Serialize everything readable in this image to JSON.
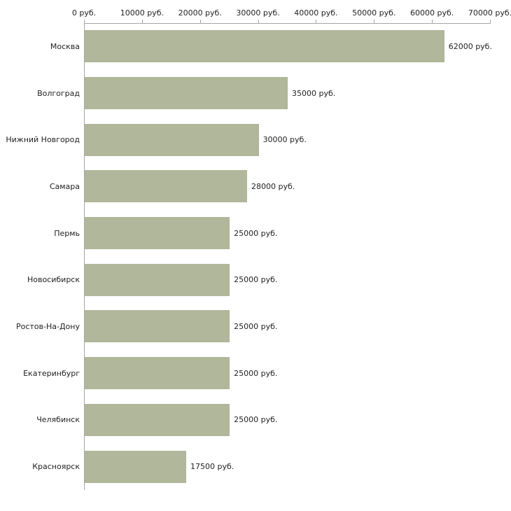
{
  "chart_data": {
    "type": "bar",
    "orientation": "horizontal",
    "title": "",
    "xlabel": "",
    "ylabel": "",
    "categories": [
      "Москва",
      "Волгоград",
      "Нижний Новгород",
      "Самара",
      "Пермь",
      "Новосибирск",
      "Ростов-На-Дону",
      "Екатеринбург",
      "Челябинск",
      "Красноярск"
    ],
    "values": [
      62000,
      35000,
      30000,
      28000,
      25000,
      25000,
      25000,
      25000,
      25000,
      17500
    ],
    "value_labels": [
      "62000 руб.",
      "35000 руб.",
      "30000 руб.",
      "28000 руб.",
      "25000 руб.",
      "25000 руб.",
      "25000 руб.",
      "25000 руб.",
      "25000 руб.",
      "17500 руб."
    ],
    "xlim": [
      0,
      70000
    ],
    "x_ticks": [
      0,
      10000,
      20000,
      30000,
      40000,
      50000,
      60000,
      70000
    ],
    "x_tick_labels": [
      "0 руб.",
      "10000 руб.",
      "20000 руб.",
      "30000 руб.",
      "40000 руб.",
      "50000 руб.",
      "60000 руб.",
      "70000 руб."
    ],
    "grid": false,
    "legend": "none",
    "axis_position": "top",
    "bar_color": "#b0b79a",
    "axis_color": "#a6a6a6",
    "text_color": "#222222"
  }
}
